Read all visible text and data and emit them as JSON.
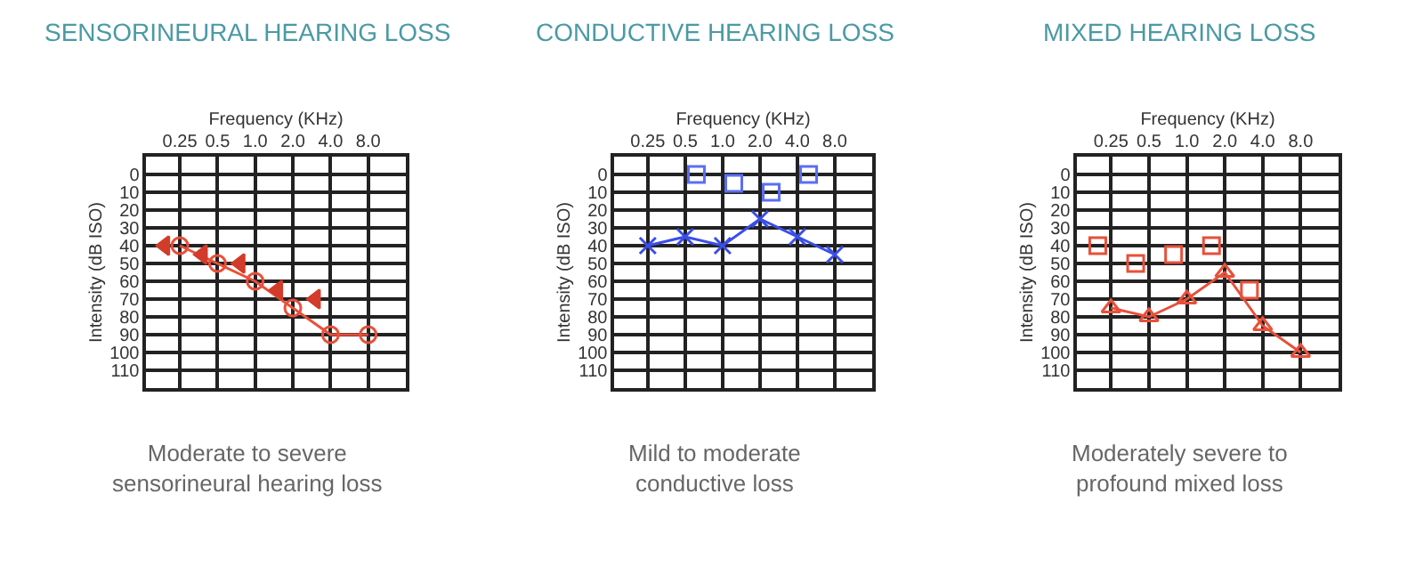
{
  "chart_data": [
    {
      "type": "line",
      "title": "SENSORINEURAL HEARING LOSS",
      "xlabel": "Frequency (KHz)",
      "ylabel": "Intensity (dB ISO)",
      "categories": [
        "0.25",
        "0.5",
        "1.0",
        "2.0",
        "4.0",
        "8.0"
      ],
      "ylim": [
        120,
        -10
      ],
      "yticks": [
        0,
        10,
        20,
        30,
        40,
        50,
        60,
        70,
        80,
        90,
        100,
        110
      ],
      "grid": true,
      "annotations": [
        "Moderate to severe\nsensorineural hearing loss"
      ],
      "series": [
        {
          "marker": "circle",
          "color": "#e8503a",
          "values": [
            40,
            50,
            60,
            75,
            90,
            90
          ]
        },
        {
          "type": "scatter",
          "marker": "triangle",
          "color": "#d23c2a",
          "values": [
            40,
            45,
            50,
            65,
            70,
            null
          ]
        }
      ]
    },
    {
      "type": "line",
      "title": "CONDUCTIVE HEARING LOSS",
      "xlabel": "Frequency (KHz)",
      "ylabel": "Intensity (dB ISO)",
      "categories": [
        "0.25",
        "0.5",
        "1.0",
        "2.0",
        "4.0",
        "8.0"
      ],
      "ylim": [
        120,
        -10
      ],
      "yticks": [
        0,
        10,
        20,
        30,
        40,
        50,
        60,
        70,
        80,
        90,
        100,
        110
      ],
      "grid": true,
      "annotations": [
        "Mild to moderate\nconductive loss"
      ],
      "series": [
        {
          "marker": "cross",
          "color": "#3a4ee8",
          "values": [
            40,
            35,
            40,
            25,
            35,
            45
          ]
        },
        {
          "type": "scatter",
          "marker": "square",
          "color": "#5b6ef5",
          "values": [
            null,
            0,
            5,
            10,
            0,
            null
          ]
        }
      ]
    },
    {
      "type": "line",
      "title": "MIXED HEARING LOSS",
      "xlabel": "Frequency (KHz)",
      "ylabel": "Intensity (dB ISO)",
      "categories": [
        "0.25",
        "0.5",
        "1.0",
        "2.0",
        "4.0",
        "8.0"
      ],
      "ylim": [
        120,
        -10
      ],
      "yticks": [
        0,
        10,
        20,
        30,
        40,
        50,
        60,
        70,
        80,
        90,
        100,
        110
      ],
      "grid": true,
      "annotations": [
        "Moderately severe to\nprofound mixed loss"
      ],
      "series": [
        {
          "marker": "triangle",
          "color": "#e8503a",
          "values": [
            75,
            80,
            70,
            55,
            85,
            100
          ]
        },
        {
          "type": "scatter",
          "marker": "square",
          "color": "#e8503a",
          "values": [
            40,
            50,
            45,
            40,
            65,
            null
          ]
        }
      ]
    }
  ]
}
